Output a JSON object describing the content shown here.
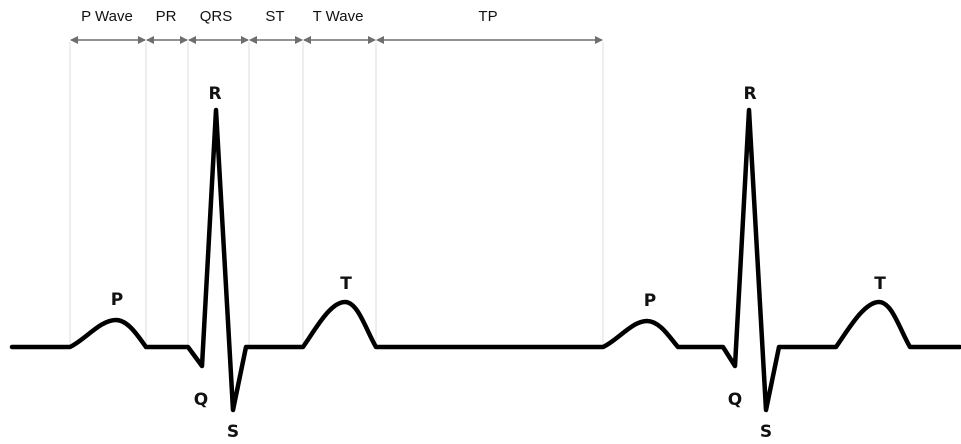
{
  "colors": {
    "trace": "#000000",
    "arrow": "#6e6e6e",
    "guide": "#dcdcdc",
    "text": "#111111"
  },
  "segments": {
    "p_wave": "P Wave",
    "pr": "PR",
    "qrs": "QRS",
    "st": "ST",
    "t_wave": "T Wave",
    "tp": "TP"
  },
  "waves": {
    "beat1": {
      "p": "P",
      "q": "Q",
      "r": "R",
      "s": "S",
      "t": "T"
    },
    "beat2": {
      "p": "P",
      "q": "Q",
      "r": "R",
      "s": "S",
      "t": "T"
    }
  }
}
